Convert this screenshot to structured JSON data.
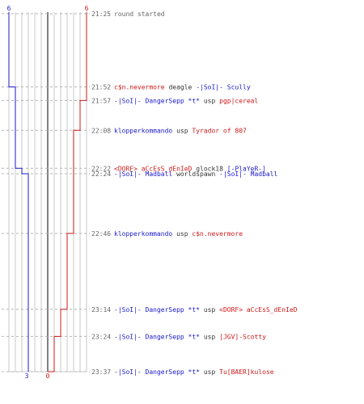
{
  "chart_data": {
    "type": "line",
    "teams": [
      {
        "name": "blue",
        "color": "#1a1acc",
        "start": 6,
        "end": 3
      },
      {
        "name": "red",
        "color": "#cc1a1a",
        "start": 6,
        "end": 0
      }
    ],
    "events": [
      {
        "time": "21:25",
        "text": "round started",
        "killer": "",
        "killer_team": "",
        "weapon": "",
        "victim": "",
        "victim_team": "",
        "blue": 6,
        "red": 6
      },
      {
        "time": "21:52",
        "killer": "c$n.nevermore",
        "killer_team": "red",
        "weapon": "deagle",
        "victim": "-|SoI|- Scully",
        "victim_team": "blue",
        "blue": 5,
        "red": 6
      },
      {
        "time": "21:57",
        "killer": "-|SoI|- DangerSepp *t*",
        "killer_team": "blue",
        "weapon": "usp",
        "victim": "pgp|cereal",
        "victim_team": "red",
        "blue": 5,
        "red": 5
      },
      {
        "time": "22:08",
        "killer": "klopperkommando",
        "killer_team": "blue",
        "weapon": "usp",
        "victim": "Tyrador of 807",
        "victim_team": "red",
        "blue": 5,
        "red": 4
      },
      {
        "time": "22:22",
        "killer": "<DORF> aCcEsS_dEnIeD",
        "killer_team": "red",
        "weapon": "glock18",
        "victim": "[-PlaYeR-]",
        "victim_team": "blue",
        "blue": 4,
        "red": 4
      },
      {
        "time": "22:24",
        "killer": "-|SoI|- Madball",
        "killer_team": "blue",
        "weapon": "worldspawn",
        "victim": "-|SoI|- Madball",
        "victim_team": "blue",
        "blue": 3,
        "red": 4
      },
      {
        "time": "22:46",
        "killer": "klopperkommando",
        "killer_team": "blue",
        "weapon": "usp",
        "victim": "c$n.nevermore",
        "victim_team": "red",
        "blue": 3,
        "red": 3
      },
      {
        "time": "23:14",
        "killer": "-|SoI|- DangerSepp *t*",
        "killer_team": "blue",
        "weapon": "usp",
        "victim": "<DORF> aCcEsS_dEnIeD",
        "victim_team": "red",
        "blue": 3,
        "red": 2
      },
      {
        "time": "23:24",
        "killer": "-|SoI|- DangerSepp *t*",
        "killer_team": "blue",
        "weapon": "usp",
        "victim": "[JGV]-Scotty",
        "victim_team": "red",
        "blue": 3,
        "red": 1
      },
      {
        "time": "23:37",
        "killer": "-|SoI|- DangerSepp *t*",
        "killer_team": "blue",
        "weapon": "usp",
        "victim": "Tu[BAER]kulose",
        "victim_team": "red",
        "blue": 3,
        "red": 0
      }
    ],
    "x_range": [
      0,
      6
    ],
    "grid": true
  }
}
